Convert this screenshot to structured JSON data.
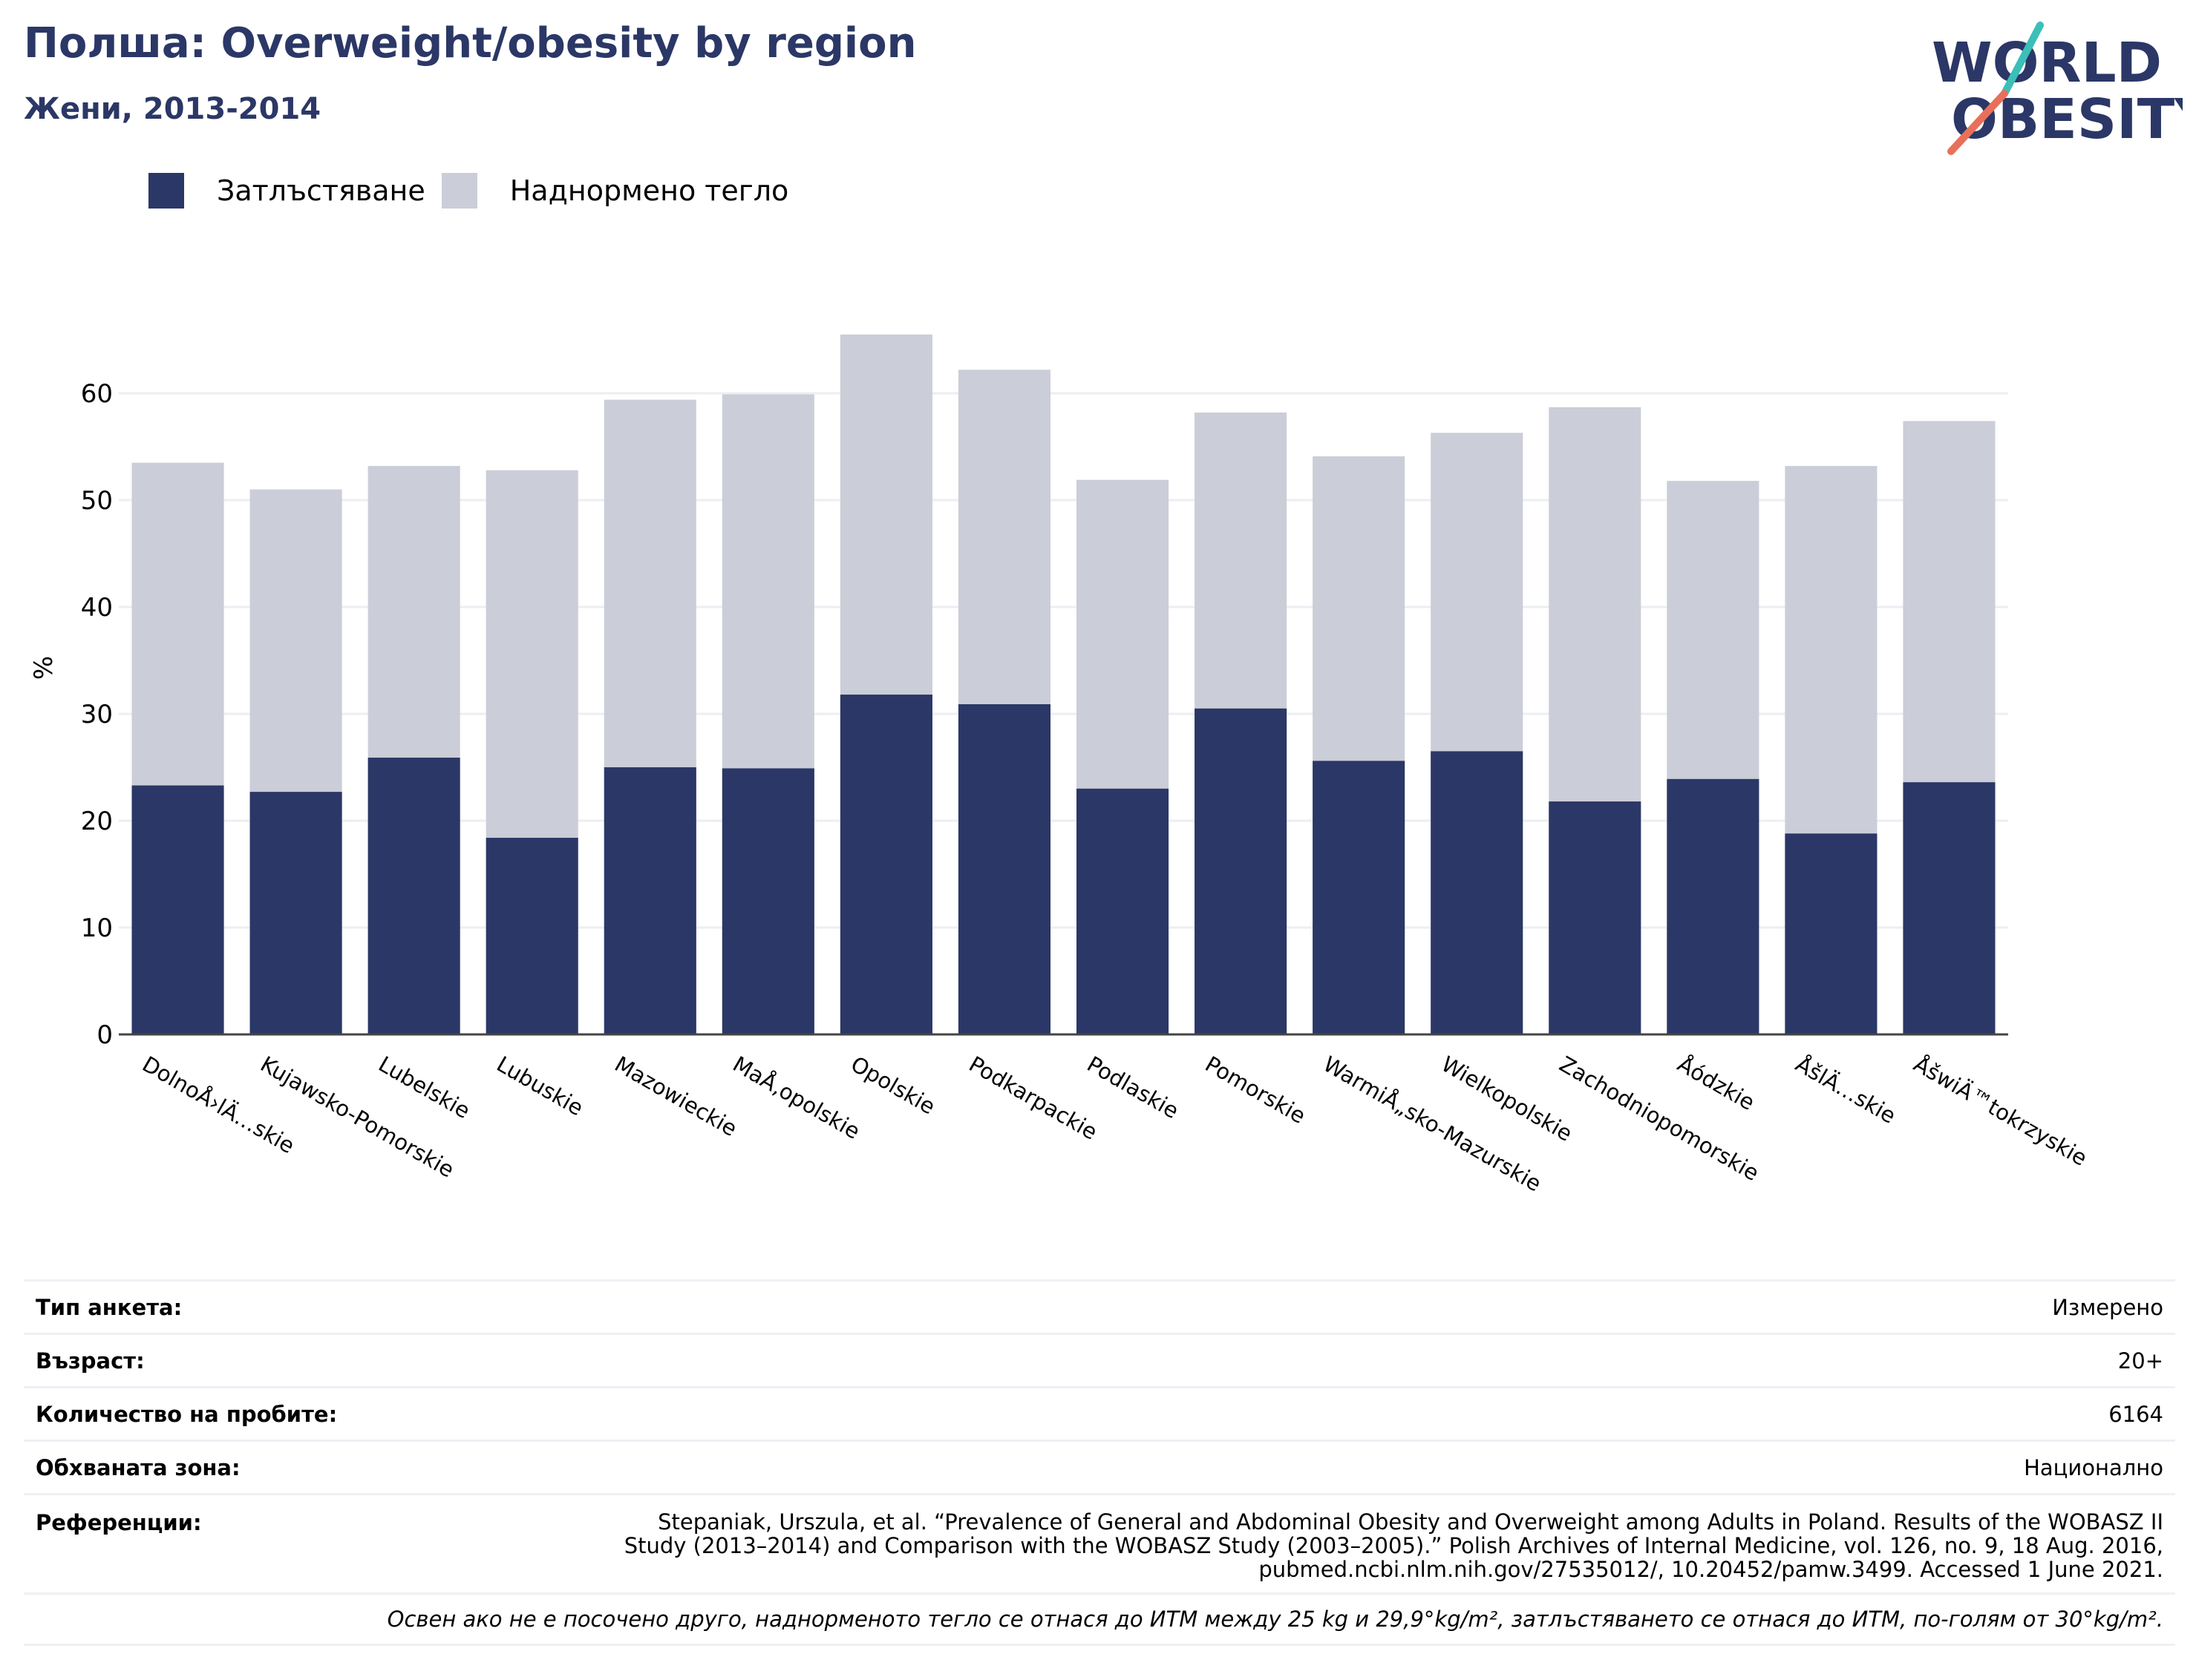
{
  "header": {
    "title": "Полша: Overweight/obesity by region",
    "subtitle": "Жени, 2013-2014"
  },
  "logo": {
    "line1": "WORLD",
    "line2": "OBESITY",
    "colors": {
      "text": "#2b3766",
      "slash_top": "#3bbfb8",
      "slash_bottom": "#e8705a"
    }
  },
  "legend": [
    {
      "label": "Затлъстяване",
      "color": "#2b3766"
    },
    {
      "label": "Наднормено тегло",
      "color": "#cbcdd8"
    }
  ],
  "chart_data": {
    "type": "bar",
    "stacked": false,
    "overlapping": true,
    "ylabel": "%",
    "ylim": [
      0,
      70
    ],
    "yticks": [
      0,
      10,
      20,
      30,
      40,
      50,
      60
    ],
    "grid": true,
    "legend_position": "top-left",
    "categories": [
      "DolnoÅ›lÄ…skie",
      "Kujawsko-Pomorskie",
      "Lubelskie",
      "Lubuskie",
      "Mazowieckie",
      "MaÅ‚opolskie",
      "Opolskie",
      "Podkarpackie",
      "Podlaskie",
      "Pomorskie",
      "WarmiÅ„sko-Mazurskie",
      "Wielkopolskie",
      "Zachodniopomorskie",
      "Åódzkie",
      "ÅšlÄ…skie",
      "ÅšwiÄ™tokrzyskie"
    ],
    "series": [
      {
        "name": "Затлъстяване",
        "color": "#2b3766",
        "values": [
          23.3,
          22.7,
          25.9,
          18.4,
          25.0,
          24.9,
          31.8,
          30.9,
          23.0,
          30.5,
          25.6,
          26.5,
          21.8,
          23.9,
          18.8,
          23.6
        ]
      },
      {
        "name": "Наднормено тегло",
        "color": "#cbcdd8",
        "values": [
          53.5,
          51.0,
          53.2,
          52.8,
          59.4,
          59.9,
          65.5,
          62.2,
          51.9,
          58.2,
          54.1,
          56.3,
          58.7,
          51.8,
          53.2,
          57.4
        ]
      }
    ]
  },
  "info": [
    {
      "label": "Тип анкета:",
      "value": "Измерено"
    },
    {
      "label": "Възраст:",
      "value": "20+"
    },
    {
      "label": "Количество на пробите:",
      "value": "6164"
    },
    {
      "label": "Обхваната зона:",
      "value": "Национално"
    }
  ],
  "references": {
    "label": "Референции:",
    "value": "Stepaniak, Urszula, et al. “Prevalence of General and Abdominal Obesity and Overweight among Adults in Poland. Results of the WOBASZ II Study (2013–2014) and Comparison with the WOBASZ Study (2003–2005).” Polish Archives of Internal Medicine, vol. 126, no. 9, 18 Aug. 2016, pubmed.ncbi.nlm.nih.gov/27535012/, 10.20452/pamw.3499. Accessed 1 June 2021."
  },
  "note": "Освен ако не е посочено друго, наднорменото тегло се отнася до ИТМ между 25 kg и 29,9°kg/m², затлъстяването се отнася до ИТМ, по-голям от 30°kg/m²."
}
